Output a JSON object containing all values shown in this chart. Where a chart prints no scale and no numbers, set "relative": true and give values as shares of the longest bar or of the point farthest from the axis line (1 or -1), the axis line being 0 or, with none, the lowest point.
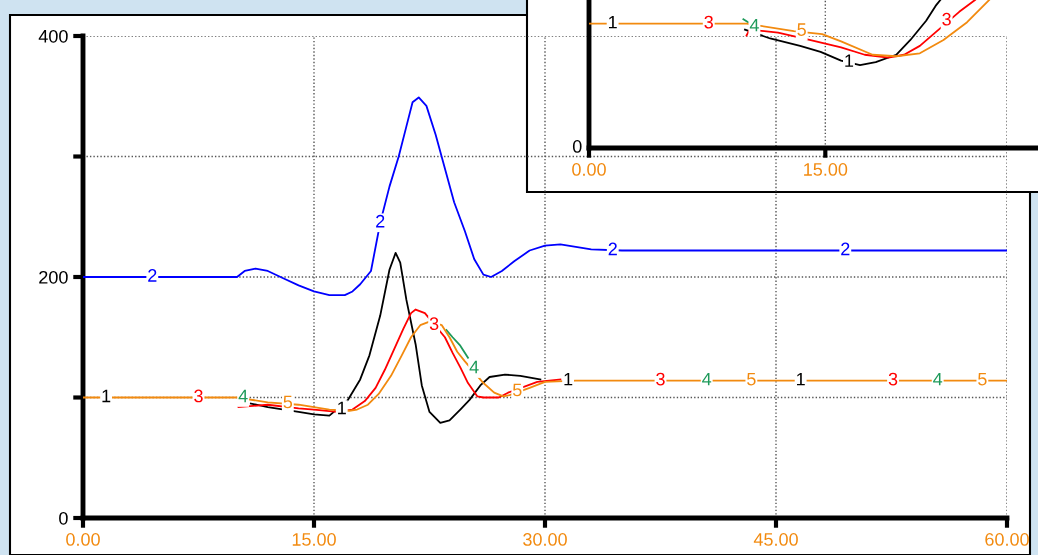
{
  "chart_data": [
    {
      "type": "line",
      "xlim": [
        0,
        60
      ],
      "xticks": [
        {
          "value": 0,
          "label": "0.00"
        },
        {
          "value": 15,
          "label": "15.00"
        },
        {
          "value": 30,
          "label": "30.00"
        },
        {
          "value": 45,
          "label": "45.00"
        },
        {
          "value": 60,
          "label": "60.00"
        }
      ],
      "ylim": [
        0,
        400
      ],
      "yticks": [
        0,
        {
          "value": 100,
          "label": null
        },
        200,
        {
          "value": 300,
          "label": null
        },
        400
      ],
      "grid": true,
      "series": [
        {
          "color": "#000000",
          "x": [
            10.9,
            12,
            14,
            15,
            16,
            17.2,
            18,
            18.6,
            19.3,
            19.9,
            20.3,
            20.6,
            21,
            21.6,
            22,
            22.5,
            23.2,
            23.8,
            24.5,
            25.1,
            25.8,
            26.4,
            27.4,
            28.4,
            29.7
          ],
          "values": [
            95,
            92,
            88,
            86,
            85,
            98,
            115,
            135,
            168,
            206,
            220,
            212,
            181,
            144,
            110,
            88,
            79,
            81,
            90,
            98,
            110,
            117,
            119,
            118,
            115
          ]
        },
        {
          "color": "#0000ff",
          "x": [
            0,
            10,
            10.5,
            11.2,
            12,
            13,
            14,
            15,
            16,
            17,
            17.5,
            18,
            18.7,
            19.3,
            19.9,
            20.5,
            21,
            21.4,
            21.8,
            22.3,
            22.9,
            23.5,
            24.1,
            24.8,
            25.4,
            26,
            26.5,
            27.2,
            28,
            29,
            30,
            31,
            32,
            33,
            35,
            40,
            60
          ],
          "values": [
            200,
            200,
            205,
            207,
            205,
            199,
            193,
            188,
            185,
            185,
            188,
            194,
            205,
            245,
            275,
            300,
            325,
            345,
            349,
            342,
            318,
            290,
            262,
            238,
            215,
            202,
            200,
            205,
            213,
            222,
            226,
            227,
            225,
            223,
            222,
            222,
            222
          ]
        },
        {
          "color": "#ff0000",
          "x": [
            10.1,
            12,
            14,
            15,
            16.5,
            17.5,
            18.3,
            19,
            19.6,
            20.2,
            20.8,
            21.3,
            21.6,
            22.2,
            23.5,
            24,
            24.5,
            25,
            25.6,
            26,
            27,
            27.6,
            29.5,
            31
          ],
          "values": [
            92,
            94,
            91,
            90,
            88,
            90,
            97,
            108,
            123,
            140,
            157,
            170,
            173,
            170,
            150,
            137,
            125,
            112,
            101,
            100,
            100,
            104,
            113,
            115
          ]
        },
        {
          "color": "#1e9a5a",
          "x": [
            23.6,
            24.0,
            24.5,
            25.0
          ],
          "values": [
            156,
            150,
            143,
            133
          ]
        },
        {
          "color": "#f28a0f",
          "x": [
            0,
            10,
            12,
            14,
            15,
            16,
            17.3,
            17.8,
            18.5,
            19.2,
            20,
            20.7,
            21.3,
            21.9,
            22.5,
            23.3,
            23.8,
            24.3,
            24.8,
            26,
            26.7,
            27.3,
            27.7,
            29,
            30,
            32,
            60
          ],
          "values": [
            100,
            100,
            96,
            94,
            92,
            90,
            89,
            90,
            94,
            103,
            118,
            135,
            150,
            160,
            163,
            160,
            150,
            138,
            130,
            112,
            104,
            101,
            102,
            108,
            113,
            114,
            114
          ]
        }
      ],
      "annotations": [
        {
          "text": "1",
          "x": 1.5,
          "y": 100
        },
        {
          "text": "2",
          "x": 4.5,
          "y": 200
        },
        {
          "text": "3",
          "x": 7.5,
          "y": 100
        },
        {
          "text": "4",
          "x": 10.4,
          "y": 100
        },
        {
          "text": "5",
          "x": 13.3,
          "y": 95
        },
        {
          "text": "1",
          "x": 16.8,
          "y": 90
        },
        {
          "text": "2",
          "x": 19.3,
          "y": 245
        },
        {
          "text": "3",
          "x": 22.8,
          "y": 160
        },
        {
          "text": "4",
          "x": 25.4,
          "y": 124
        },
        {
          "text": "5",
          "x": 28.2,
          "y": 105
        },
        {
          "text": "1",
          "x": 31.5,
          "y": 114
        },
        {
          "text": "2",
          "x": 34.4,
          "y": 222
        },
        {
          "text": "3",
          "x": 37.5,
          "y": 114
        },
        {
          "text": "4",
          "x": 40.5,
          "y": 114
        },
        {
          "text": "5",
          "x": 43.4,
          "y": 114
        },
        {
          "text": "1",
          "x": 46.6,
          "y": 114
        },
        {
          "text": "2",
          "x": 49.5,
          "y": 222
        },
        {
          "text": "3",
          "x": 52.6,
          "y": 114
        },
        {
          "text": "4",
          "x": 55.5,
          "y": 114
        },
        {
          "text": "5",
          "x": 58.4,
          "y": 114
        }
      ]
    },
    {
      "type": "line",
      "relative": true,
      "xlim": [
        0,
        28.5
      ],
      "xticks": [
        {
          "value": 0,
          "label": "0.00"
        },
        {
          "value": 15,
          "label": "15.00"
        }
      ],
      "grid": "x",
      "series": [
        {
          "color": "#000000",
          "x": [
            9.9,
            11.5,
            13.4,
            14.7,
            16,
            17.2,
            18.2,
            19.5,
            20.4,
            21.4,
            22,
            22.3
          ],
          "values": [
            0.8,
            0.74,
            0.69,
            0.65,
            0.59,
            0.56,
            0.58,
            0.63,
            0.73,
            0.86,
            0.96,
            1
          ]
        },
        {
          "color": "#ff0000",
          "x": [
            10,
            10.2,
            12,
            14,
            16,
            17.5,
            19,
            20,
            21,
            23.5,
            24.5
          ],
          "values": [
            0.76,
            0.8,
            0.78,
            0.73,
            0.68,
            0.63,
            0.61,
            0.63,
            0.69,
            0.92,
            1
          ]
        },
        {
          "color": "#1e9a5a",
          "x": [
            9.8,
            10.1
          ],
          "values": [
            0.87,
            0.85
          ]
        },
        {
          "color": "#f28a0f",
          "x": [
            0,
            10,
            13,
            14.8,
            16,
            18,
            19.5,
            21,
            22.5,
            24,
            25.4
          ],
          "values": [
            0.84,
            0.84,
            0.79,
            0.77,
            0.72,
            0.63,
            0.62,
            0.64,
            0.73,
            0.85,
            1
          ]
        }
      ],
      "annotations": [
        "0",
        {
          "text": "1",
          "x": 1.5,
          "y": 0.84
        },
        {
          "text": "3",
          "x": 7.6,
          "y": 0.84
        },
        {
          "text": "4",
          "x": 10.5,
          "y": 0.82
        },
        {
          "text": "5",
          "x": 13.5,
          "y": 0.79
        },
        {
          "text": "1",
          "x": 16.5,
          "y": 0.58
        },
        {
          "text": "3",
          "x": 22.7,
          "y": 0.86
        }
      ]
    }
  ]
}
